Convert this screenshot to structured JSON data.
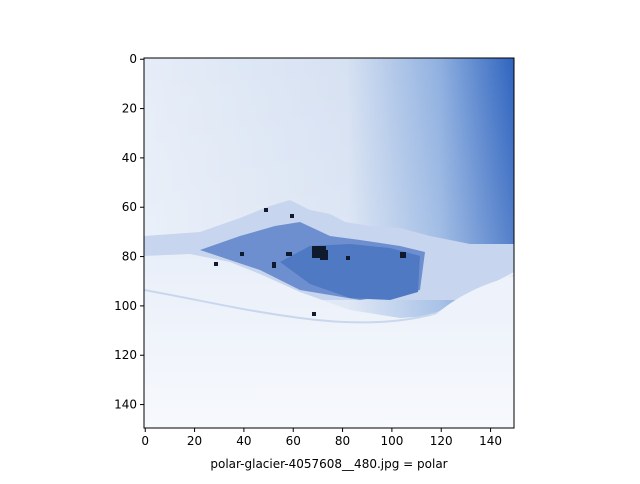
{
  "image": {
    "description_icon": "polar-glacier-photo",
    "palette": {
      "sky_light": "#dfe8f5",
      "sky_deep": "#3a6fc4",
      "snow": "#f3f6fb",
      "snow_shadow": "#c9d7ee",
      "ice_blue": "#4f79c2",
      "rock_dark": "#0f1a2e"
    }
  },
  "axes": {
    "x_ticks": [
      "0",
      "20",
      "40",
      "60",
      "80",
      "100",
      "120",
      "140"
    ],
    "y_ticks": [
      "0",
      "20",
      "40",
      "60",
      "80",
      "100",
      "120",
      "140"
    ],
    "xlabel": "polar-glacier-4057608__480.jpg = polar"
  }
}
